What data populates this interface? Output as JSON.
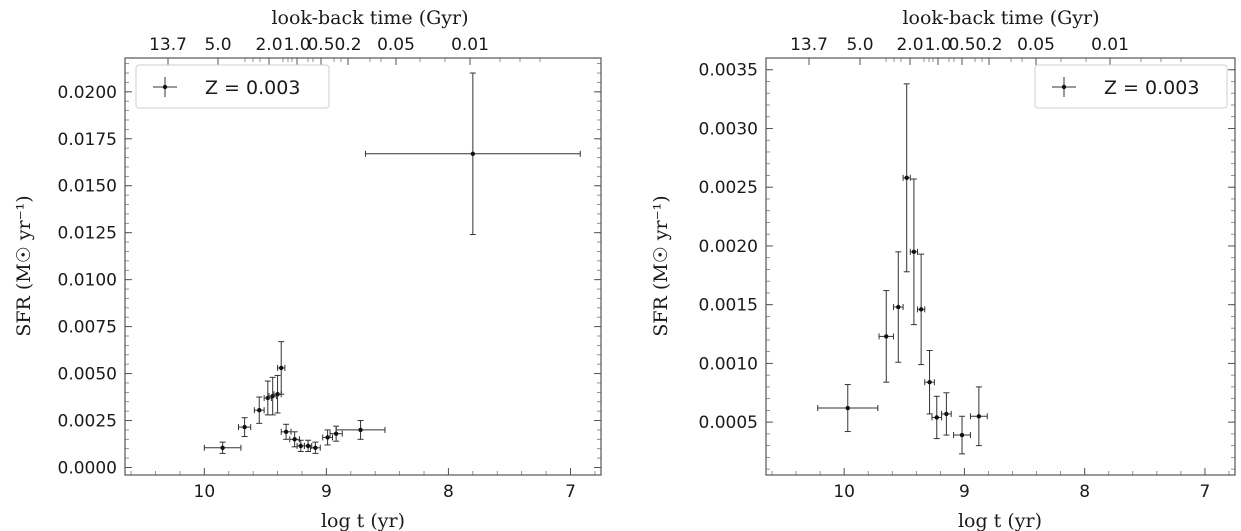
{
  "chart_data": [
    {
      "type": "scatter",
      "xlabel": "log t (yr)",
      "ylabel": "SFR (M☉ yr⁻¹)",
      "top_xlabel": "look-back time (Gyr)",
      "xlim": [
        10.65,
        6.75
      ],
      "ylim": [
        -0.0004,
        0.0218
      ],
      "x_reversed": true,
      "xticks": [
        "10",
        "9",
        "8",
        "7"
      ],
      "yticks": [
        "0.0000",
        "0.0025",
        "0.0050",
        "0.0075",
        "0.0100",
        "0.0125",
        "0.0150",
        "0.0175",
        "0.0200"
      ],
      "top_ticks": [
        "13.7",
        "5.0",
        "2.0",
        "1.0",
        "0.5",
        "0.2",
        "0.05",
        "0.01"
      ],
      "legend": {
        "label": "Z = 0.003",
        "position": "upper-left"
      },
      "series": [
        {
          "x": [
            9.85,
            9.67,
            9.55,
            9.48,
            9.44,
            9.4,
            9.37,
            9.33,
            9.26,
            9.21,
            9.15,
            9.09,
            8.99,
            8.92,
            8.72,
            7.8
          ],
          "y": [
            0.00105,
            0.00215,
            0.00305,
            0.0037,
            0.0038,
            0.0039,
            0.0053,
            0.0019,
            0.0015,
            0.00115,
            0.00115,
            0.00105,
            0.0016,
            0.0018,
            0.002,
            0.0167
          ],
          "xerr": [
            0.15,
            0.05,
            0.04,
            0.03,
            0.03,
            0.03,
            0.03,
            0.04,
            0.04,
            0.03,
            0.03,
            0.04,
            0.04,
            0.05,
            0.2,
            0.88
          ],
          "yerr": [
            0.0003,
            0.0005,
            0.0007,
            0.0009,
            0.001,
            0.001,
            0.0014,
            0.0004,
            0.0004,
            0.0003,
            0.0003,
            0.0003,
            0.0004,
            0.0004,
            0.0005,
            0.0043
          ]
        }
      ]
    },
    {
      "type": "scatter",
      "xlabel": "log t (yr)",
      "ylabel": "SFR (M☉ yr⁻¹)",
      "top_xlabel": "look-back time (Gyr)",
      "xlim": [
        10.65,
        6.75
      ],
      "ylim": [
        5e-05,
        0.0036
      ],
      "x_reversed": true,
      "xticks": [
        "10",
        "9",
        "8",
        "7"
      ],
      "yticks": [
        "0.0005",
        "0.0010",
        "0.0015",
        "0.0020",
        "0.0025",
        "0.0030",
        "0.0035"
      ],
      "top_ticks": [
        "13.7",
        "5.0",
        "2.0",
        "1.0",
        "0.5",
        "0.2",
        "0.05",
        "0.01"
      ],
      "legend": {
        "label": "Z = 0.003",
        "position": "upper-right"
      },
      "series": [
        {
          "x": [
            9.97,
            9.65,
            9.55,
            9.48,
            9.42,
            9.36,
            9.29,
            9.23,
            9.15,
            9.02,
            8.88
          ],
          "y": [
            0.00062,
            0.00123,
            0.00148,
            0.00258,
            0.00195,
            0.00146,
            0.00084,
            0.00054,
            0.00057,
            0.00039,
            0.00055
          ],
          "xerr": [
            0.25,
            0.06,
            0.04,
            0.03,
            0.03,
            0.03,
            0.04,
            0.04,
            0.04,
            0.07,
            0.07
          ],
          "yerr": [
            0.0002,
            0.00039,
            0.00047,
            0.0008,
            0.00062,
            0.00047,
            0.00027,
            0.00018,
            0.00018,
            0.00016,
            0.00025
          ]
        }
      ]
    }
  ]
}
